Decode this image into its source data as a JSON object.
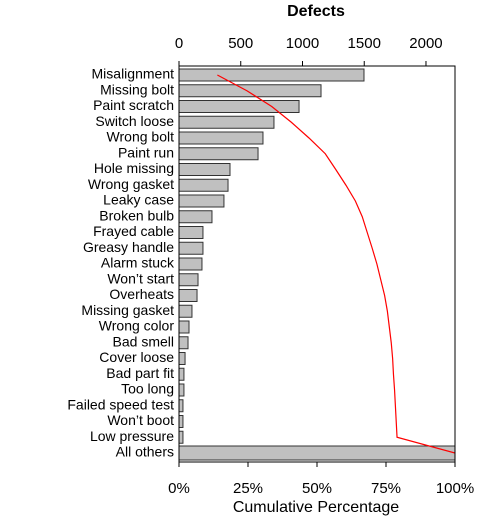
{
  "chart_data": {
    "type": "bar",
    "orientation": "horizontal",
    "xlabel": "Defects",
    "x2label": "Cumulative Percentage",
    "categories": [
      "Misalignment",
      "Missing bolt",
      "Paint scratch",
      "Switch loose",
      "Wrong bolt",
      "Paint run",
      "Hole missing",
      "Wrong gasket",
      "Leaky case",
      "Broken bulb",
      "Frayed cable",
      "Greasy handle",
      "Alarm stuck",
      "Won’t start",
      "Overheats",
      "Missing gasket",
      "Wrong color",
      "Bad smell",
      "Cover loose",
      "Bad part fit",
      "Too long",
      "Failed speed test",
      "Won’t boot",
      "Low pressure",
      "All others"
    ],
    "values": [
      1498,
      1150,
      972,
      769,
      680,
      640,
      413,
      397,
      364,
      267,
      194,
      194,
      186,
      154,
      146,
      105,
      81,
      73,
      49,
      40,
      40,
      32,
      32,
      32,
      2260
    ],
    "color": "#c0c0c0",
    "cumulative": {
      "values": [
        13.9,
        24.6,
        33.6,
        40.7,
        47.1,
        53.0,
        56.8,
        60.5,
        63.9,
        66.4,
        68.2,
        70.0,
        71.7,
        73.1,
        74.5,
        75.5,
        76.2,
        76.9,
        77.4,
        77.7,
        78.1,
        78.4,
        78.7,
        79.0,
        100
      ],
      "color": "#ff0000"
    },
    "xlim": [
      0,
      2235
    ],
    "xticks": [
      0,
      500,
      1000,
      1500,
      2000
    ],
    "x2lim": [
      0,
      100
    ],
    "x2ticks": [
      {
        "value": 0,
        "label": "0%"
      },
      {
        "value": 25,
        "label": "25%"
      },
      {
        "value": 50,
        "label": "50%"
      },
      {
        "value": 75,
        "label": "75%"
      },
      {
        "value": 100,
        "label": "100%"
      }
    ]
  }
}
